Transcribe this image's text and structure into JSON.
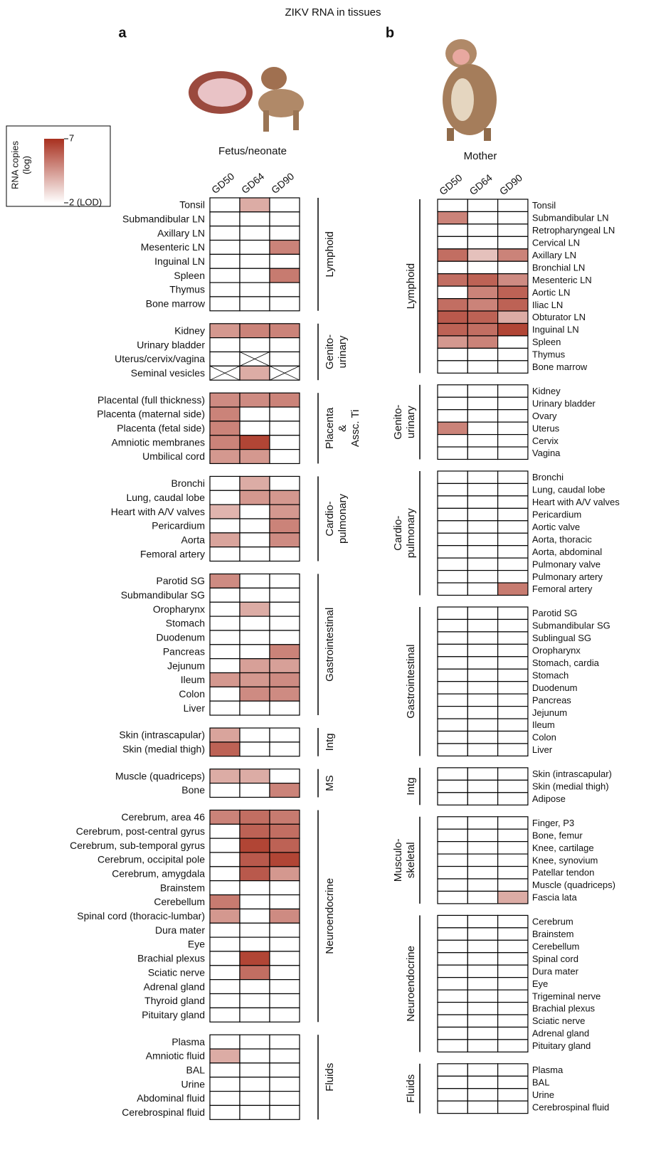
{
  "title": "ZIKV RNA in tissues",
  "colorbar": {
    "label": [
      "RNA copies",
      "(log)"
    ],
    "lim": [
      2,
      7
    ],
    "ticks": [
      7,
      {
        "value": 2,
        "label": "2 (LOD)"
      }
    ],
    "colors": [
      "#ffffff",
      "#a8301f"
    ]
  },
  "chart_data": [
    {
      "type": "heatmap",
      "panel": "a",
      "subject": "Fetus/neonate",
      "columns": [
        "GD50",
        "GD64",
        "GD90"
      ],
      "groups": [
        {
          "name": [
            "Lymphoid"
          ],
          "rows": [
            "Tonsil",
            "Submandibular LN",
            "Axillary LN",
            "Mesenteric LN",
            "Inguinal LN",
            "Spleen",
            "Thymus",
            "Bone marrow"
          ],
          "values": [
            [
              2,
              4,
              2
            ],
            [
              2,
              2,
              2
            ],
            [
              2,
              2,
              2
            ],
            [
              2,
              2,
              5
            ],
            [
              2,
              2,
              2
            ],
            [
              2,
              2,
              5.2
            ],
            [
              2,
              2,
              2
            ],
            [
              2,
              2,
              2
            ]
          ]
        },
        {
          "name": [
            "Genito-",
            "urinary"
          ],
          "rows": [
            "Kidney",
            "Urinary bladder",
            "Uterus/cervix/vagina",
            "Seminal vesicles"
          ],
          "values": [
            [
              4.5,
              5,
              5
            ],
            [
              2,
              2,
              2
            ],
            [
              2,
              null,
              2
            ],
            [
              null,
              4,
              null
            ]
          ]
        },
        {
          "name": [
            "Placenta",
            "&",
            "Assc. Ti"
          ],
          "rows": [
            "Placental (full thickness)",
            "Placenta (maternal side)",
            "Placenta (fetal side)",
            "Amniotic membranes",
            "Umbilical cord"
          ],
          "values": [
            [
              4.8,
              4.8,
              5
            ],
            [
              5,
              2,
              2
            ],
            [
              5,
              2,
              2
            ],
            [
              5,
              6.5,
              2
            ],
            [
              4.5,
              4.5,
              2
            ]
          ]
        },
        {
          "name": [
            "Cardio-",
            "pulmonary"
          ],
          "rows": [
            "Bronchi",
            "Lung, caudal lobe",
            "Heart with A/V valves",
            "Pericardium",
            "Aorta",
            "Femoral artery"
          ],
          "values": [
            [
              2,
              4,
              2
            ],
            [
              2,
              4.5,
              4.5
            ],
            [
              3.8,
              2,
              4.5
            ],
            [
              2,
              2,
              5
            ],
            [
              4.2,
              2,
              4.8
            ],
            [
              2,
              2,
              2
            ]
          ]
        },
        {
          "name": [
            "Gastrointestinal"
          ],
          "rows": [
            "Parotid SG",
            "Submandibular SG",
            "Oropharynx",
            "Stomach",
            "Duodenum",
            "Pancreas",
            "Jejunum",
            "Ileum",
            "Colon",
            "Liver"
          ],
          "values": [
            [
              4.8,
              2,
              2
            ],
            [
              2,
              2,
              2
            ],
            [
              2,
              4,
              2
            ],
            [
              2,
              2,
              2
            ],
            [
              2,
              2,
              2
            ],
            [
              2,
              2,
              5
            ],
            [
              2,
              4.3,
              4.3
            ],
            [
              4.5,
              4.5,
              4.8
            ],
            [
              2,
              4.8,
              4.8
            ],
            [
              2,
              2,
              2
            ]
          ]
        },
        {
          "name": [
            "Intg"
          ],
          "rows": [
            "Skin (intrascapular)",
            "Skin (medial thigh)"
          ],
          "values": [
            [
              4.2,
              2,
              2
            ],
            [
              5.8,
              2,
              2
            ]
          ]
        },
        {
          "name": [
            "MS"
          ],
          "rows": [
            "Muscle (quadriceps)",
            "Bone"
          ],
          "values": [
            [
              4,
              4,
              2
            ],
            [
              2,
              2,
              5
            ]
          ]
        },
        {
          "name": [
            "Neuroendocrine"
          ],
          "rows": [
            "Cerebrum, area 46",
            "Cerebrum, post-central gyrus",
            "Cerebrum, sub-temporal gyrus",
            "Cerebrum, occipital pole",
            "Cerebrum, amygdala",
            "Brainstem",
            "Cerebellum",
            "Spinal cord (thoracic-lumbar)",
            "Dura mater",
            "Eye",
            "Brachial plexus",
            "Sciatic nerve",
            "Adrenal gland",
            "Thyroid gland",
            "Pituitary gland"
          ],
          "values": [
            [
              5,
              5.5,
              5.2
            ],
            [
              2,
              5.8,
              5.5
            ],
            [
              2,
              6.5,
              5.8
            ],
            [
              2,
              6,
              6.5
            ],
            [
              2,
              6,
              4.5
            ],
            [
              2,
              2,
              2
            ],
            [
              5.2,
              2,
              2
            ],
            [
              4.5,
              2,
              4.8
            ],
            [
              2,
              2,
              2
            ],
            [
              2,
              2,
              2
            ],
            [
              2,
              6.5,
              2
            ],
            [
              2,
              5.5,
              2
            ],
            [
              2,
              2,
              2
            ],
            [
              2,
              2,
              2
            ],
            [
              2,
              2,
              2
            ]
          ]
        },
        {
          "name": [
            "Fluids"
          ],
          "rows": [
            "Plasma",
            "Amniotic fluid",
            "BAL",
            "Urine",
            "Abdominal fluid",
            "Cerebrospinal fluid"
          ],
          "values": [
            [
              2,
              2,
              2
            ],
            [
              4,
              2,
              2
            ],
            [
              2,
              2,
              2
            ],
            [
              2,
              2,
              2
            ],
            [
              2,
              2,
              2
            ],
            [
              2,
              2,
              2
            ]
          ]
        }
      ]
    },
    {
      "type": "heatmap",
      "panel": "b",
      "subject": "Mother",
      "columns": [
        "GD50",
        "GD64",
        "GD90"
      ],
      "groups": [
        {
          "name": [
            "Lymphoid"
          ],
          "rows": [
            "Tonsil",
            "Submandibular LN",
            "Retropharyngeal LN",
            "Cervical LN",
            "Axillary LN",
            "Bronchial LN",
            "Mesenteric LN",
            "Aortic LN",
            "Iliac LN",
            "Obturator LN",
            "Inguinal LN",
            "Spleen",
            "Thymus",
            "Bone marrow"
          ],
          "values": [
            [
              2,
              2,
              2
            ],
            [
              5,
              2,
              2
            ],
            [
              2,
              2,
              2
            ],
            [
              2,
              2,
              2
            ],
            [
              5.5,
              3.5,
              5
            ],
            [
              2,
              2,
              2
            ],
            [
              5.5,
              5.8,
              4.8
            ],
            [
              2,
              5,
              5.8
            ],
            [
              5.5,
              5,
              5.8
            ],
            [
              6,
              5.8,
              4
            ],
            [
              5.8,
              5.5,
              6.5
            ],
            [
              4.5,
              5,
              2
            ],
            [
              2,
              2,
              2
            ],
            [
              2,
              2,
              2
            ]
          ]
        },
        {
          "name": [
            "Genito-",
            "urinary"
          ],
          "rows": [
            "Kidney",
            "Urinary bladder",
            "Ovary",
            "Uterus",
            "Cervix",
            "Vagina"
          ],
          "values": [
            [
              2,
              2,
              2
            ],
            [
              2,
              2,
              2
            ],
            [
              2,
              2,
              2
            ],
            [
              5,
              2,
              2
            ],
            [
              2,
              2,
              2
            ],
            [
              2,
              2,
              2
            ]
          ]
        },
        {
          "name": [
            "Cardio-",
            "pulmonary"
          ],
          "rows": [
            "Bronchi",
            "Lung, caudal lobe",
            "Heart with A/V valves",
            "Pericardium",
            "Aortic valve",
            "Aorta, thoracic",
            "Aorta, abdominal",
            "Pulmonary valve",
            "Pulmonary artery",
            "Femoral artery"
          ],
          "values": [
            [
              2,
              2,
              2
            ],
            [
              2,
              2,
              2
            ],
            [
              2,
              2,
              2
            ],
            [
              2,
              2,
              2
            ],
            [
              2,
              2,
              2
            ],
            [
              2,
              2,
              2
            ],
            [
              2,
              2,
              2
            ],
            [
              2,
              2,
              2
            ],
            [
              2,
              2,
              2
            ],
            [
              2,
              2,
              5.2
            ]
          ]
        },
        {
          "name": [
            "Gastrointestinal"
          ],
          "rows": [
            "Parotid SG",
            "Submandibular SG",
            "Sublingual SG",
            "Oropharynx",
            "Stomach, cardia",
            "Stomach",
            "Duodenum",
            "Pancreas",
            "Jejunum",
            "Ileum",
            "Colon",
            "Liver"
          ],
          "values": [
            [
              2,
              2,
              2
            ],
            [
              2,
              2,
              2
            ],
            [
              2,
              2,
              2
            ],
            [
              2,
              2,
              2
            ],
            [
              2,
              2,
              2
            ],
            [
              2,
              2,
              2
            ],
            [
              2,
              2,
              2
            ],
            [
              2,
              2,
              2
            ],
            [
              2,
              2,
              2
            ],
            [
              2,
              2,
              2
            ],
            [
              2,
              2,
              2
            ],
            [
              2,
              2,
              2
            ]
          ]
        },
        {
          "name": [
            "Intg"
          ],
          "rows": [
            "Skin (intrascapular)",
            "Skin (medial thigh)",
            "Adipose"
          ],
          "values": [
            [
              2,
              2,
              2
            ],
            [
              2,
              2,
              2
            ],
            [
              2,
              2,
              2
            ]
          ]
        },
        {
          "name": [
            "Musculo-",
            "skeletal"
          ],
          "rows": [
            "Finger, P3",
            "Bone, femur",
            "Knee, cartilage",
            "Knee, synovium",
            "Patellar tendon",
            "Muscle (quadriceps)",
            "Fascia lata"
          ],
          "values": [
            [
              2,
              2,
              2
            ],
            [
              2,
              2,
              2
            ],
            [
              2,
              2,
              2
            ],
            [
              2,
              2,
              2
            ],
            [
              2,
              2,
              2
            ],
            [
              2,
              2,
              2
            ],
            [
              2,
              2,
              4
            ]
          ]
        },
        {
          "name": [
            "Neuroendocrine"
          ],
          "rows": [
            "Cerebrum",
            "Brainstem",
            "Cerebellum",
            "Spinal cord",
            "Dura mater",
            "Eye",
            "Trigeminal nerve",
            "Brachial plexus",
            "Sciatic nerve",
            "Adrenal gland",
            "Pituitary gland"
          ],
          "values": [
            [
              2,
              2,
              2
            ],
            [
              2,
              2,
              2
            ],
            [
              2,
              2,
              2
            ],
            [
              2,
              2,
              2
            ],
            [
              2,
              2,
              2
            ],
            [
              2,
              2,
              2
            ],
            [
              2,
              2,
              2
            ],
            [
              2,
              2,
              2
            ],
            [
              2,
              2,
              2
            ],
            [
              2,
              2,
              2
            ],
            [
              2,
              2,
              2
            ]
          ]
        },
        {
          "name": [
            "Fluids"
          ],
          "rows": [
            "Plasma",
            "BAL",
            "Urine",
            "Cerebrospinal fluid"
          ],
          "values": [
            [
              2,
              2,
              2
            ],
            [
              2,
              2,
              2
            ],
            [
              2,
              2,
              2
            ],
            [
              2,
              2,
              2
            ]
          ]
        }
      ]
    }
  ]
}
